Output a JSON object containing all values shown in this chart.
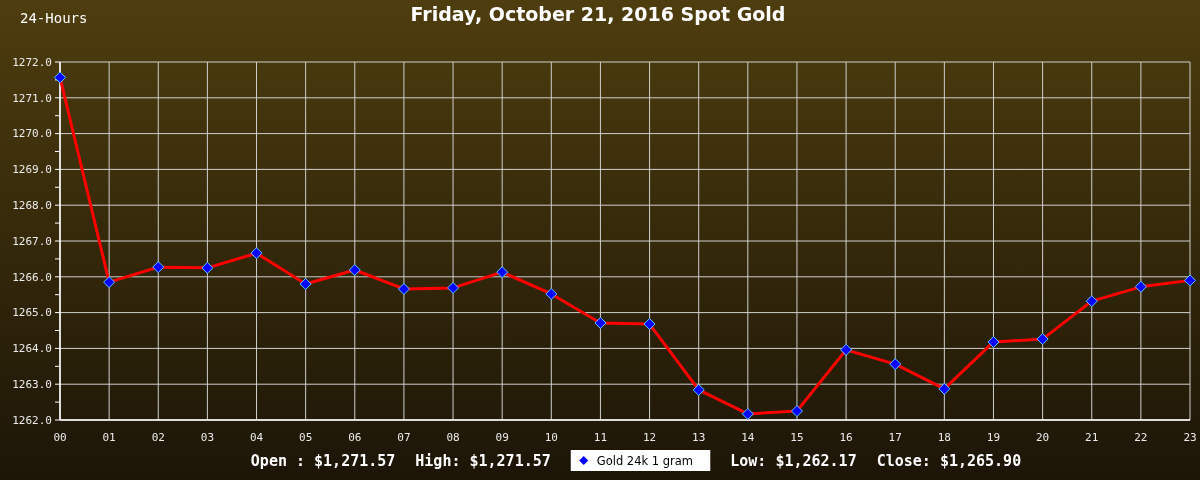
{
  "chart_data": {
    "type": "line",
    "title": "Friday, October 21, 2016 Spot Gold",
    "subtitle": "24-Hours",
    "categories": [
      "00",
      "01",
      "02",
      "03",
      "04",
      "05",
      "06",
      "07",
      "08",
      "09",
      "10",
      "11",
      "12",
      "13",
      "14",
      "15",
      "16",
      "17",
      "18",
      "19",
      "20",
      "21",
      "22",
      "23"
    ],
    "series": [
      {
        "name": "Gold 24k 1 gram",
        "color": "#ff0000",
        "colors": [
          "#0000ff",
          "#0000ff",
          "#0000ff",
          "#0000ff",
          "#0000ff",
          "#0000ff",
          "#0000ff",
          "#0000ff",
          "#0000ff",
          "#0000ff",
          "#0000ff",
          "#0000ff",
          "#0000ff",
          "#0000ff",
          "#0000ff",
          "#0000ff",
          "#0000ff",
          "#0000ff",
          "#0000ff",
          "#0000ff",
          "#0000ff",
          "#0000ff",
          "#0000ff",
          "#0000ff"
        ],
        "values": [
          1271.57,
          1265.85,
          1266.27,
          1266.25,
          1266.66,
          1265.8,
          1266.19,
          1265.66,
          1265.69,
          1266.13,
          1265.52,
          1264.71,
          1264.68,
          1262.84,
          1262.17,
          1262.25,
          1263.96,
          1263.56,
          1262.87,
          1264.18,
          1264.26,
          1265.32,
          1265.72,
          1265.9
        ]
      }
    ],
    "ylim": [
      1262,
      1272
    ],
    "yticks": [
      {
        "value": 1262,
        "label": "1262.0"
      },
      {
        "value": 1262.5,
        "label": null
      },
      {
        "value": 1263,
        "label": "1263.0"
      },
      {
        "value": 1263.5,
        "label": null
      },
      {
        "value": 1264,
        "label": "1264.0"
      },
      {
        "value": 1264.5,
        "label": null
      },
      {
        "value": 1265,
        "label": "1265.0"
      },
      {
        "value": 1265.5,
        "label": null
      },
      {
        "value": 1266,
        "label": "1266.0"
      },
      {
        "value": 1266.5,
        "label": null
      },
      {
        "value": 1267,
        "label": "1267.0"
      },
      {
        "value": 1267.5,
        "label": null
      },
      {
        "value": 1268,
        "label": "1268.0"
      },
      {
        "value": 1268.5,
        "label": null
      },
      {
        "value": 1269,
        "label": "1269.0"
      },
      {
        "value": 1269.5,
        "label": null
      },
      {
        "value": 1270,
        "label": "1270.0"
      },
      {
        "value": 1270.5,
        "label": null
      },
      {
        "value": 1271,
        "label": "1271.0"
      },
      {
        "value": 1271.5,
        "label": null
      },
      {
        "value": 1272,
        "label": "1272.0"
      }
    ],
    "grid": true,
    "legend": "bottom",
    "marker": "diamond",
    "line_style": "solid",
    "annotations": [
      "Open : $1,271.57",
      "High: $1,271.57",
      "Low: $1,262.17",
      "Close: $1,265.90"
    ]
  }
}
